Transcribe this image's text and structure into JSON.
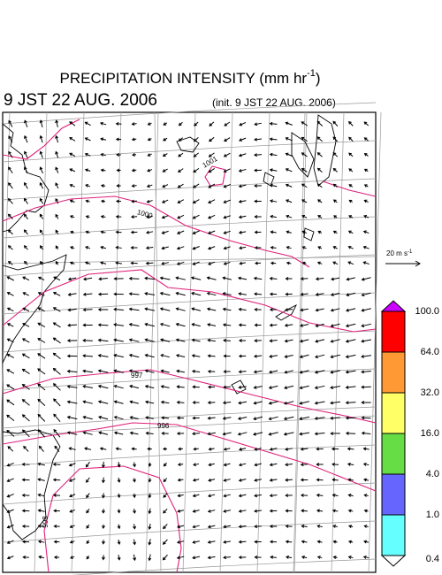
{
  "header": {
    "title_main": "PRECIPITATION INTENSITY (mm hr",
    "title_exponent": "-1",
    "title_close": ")",
    "valid_time": "9 JST 22 AUG. 2006",
    "init_time": "(init. 9 JST 22 AUG. 2006)"
  },
  "vector_legend": {
    "unit": "20 m s",
    "unit_exponent": "-1"
  },
  "map": {
    "contour_labels": [
      "1001",
      "1000",
      "997",
      "996",
      "998"
    ]
  },
  "colorbar": {
    "levels": [
      "0.4",
      "1.0",
      "4.0",
      "16.0",
      "32.0",
      "64.0",
      "100.0"
    ],
    "colors": [
      "#ffffff",
      "#66ffff",
      "#6666ff",
      "#66dd44",
      "#ffff66",
      "#ff9933",
      "#ff0000",
      "#cc00ff"
    ]
  }
}
